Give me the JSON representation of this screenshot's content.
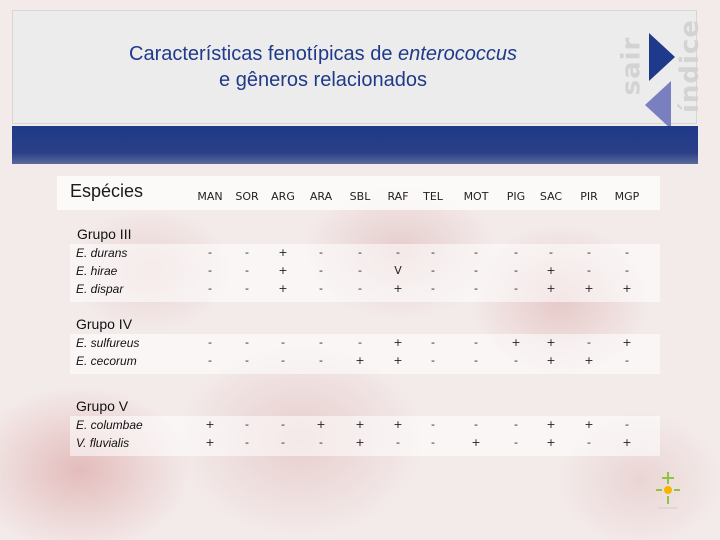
{
  "title": {
    "line1_prefix": "Características fenotípicas de ",
    "line1_italic": "enterococcus",
    "line2": "e gêneros relacionados"
  },
  "nav": {
    "sair": "sair",
    "indice": "índice"
  },
  "table": {
    "first_header": "Espécies",
    "columns": [
      "MAN",
      "SOR",
      "ARG",
      "ARA",
      "SBL",
      "RAF",
      "TEL",
      "MOT",
      "PIG",
      "SAC",
      "PIR",
      "MGP"
    ],
    "groups": [
      {
        "name": "Grupo III",
        "rows": [
          {
            "species": "E. durans",
            "values": [
              "-",
              "-",
              "+",
              "-",
              "-",
              "-",
              "-",
              "-",
              "-",
              "-",
              "-",
              "-"
            ]
          },
          {
            "species": "E. hirae",
            "values": [
              "-",
              "-",
              "+",
              "-",
              "-",
              "V",
              "-",
              "-",
              "-",
              "+",
              "-",
              "-"
            ]
          },
          {
            "species": "E. dispar",
            "values": [
              "-",
              "-",
              "+",
              "-",
              "-",
              "+",
              "-",
              "-",
              "-",
              "+",
              "+",
              "+"
            ]
          }
        ]
      },
      {
        "name": "Grupo IV",
        "rows": [
          {
            "species": "E. sulfureus",
            "values": [
              "-",
              "-",
              "-",
              "-",
              "-",
              "+",
              "-",
              "-",
              "+",
              "+",
              "-",
              "+"
            ]
          },
          {
            "species": "E. cecorum",
            "values": [
              "-",
              "-",
              "-",
              "-",
              "+",
              "+",
              "-",
              "-",
              "-",
              "+",
              "+",
              "-"
            ]
          }
        ]
      },
      {
        "name": "Grupo V",
        "rows": [
          {
            "species": "E. columbae",
            "values": [
              "+",
              "-",
              "-",
              "+",
              "+",
              "+",
              "-",
              "-",
              "-",
              "+",
              "+",
              "-"
            ]
          },
          {
            "species": "V. fluvialis",
            "values": [
              "+",
              "-",
              "-",
              "-",
              "+",
              "-",
              "-",
              "+",
              "-",
              "+",
              "-",
              "+"
            ]
          }
        ]
      }
    ]
  },
  "colors": {
    "title": "#1f3a8a",
    "bar": "#1f3a8a",
    "nav_text": "#d3d3d3",
    "nav_arrow": "#1f3a8a",
    "nav_arrow_back": "#7a7fc0"
  }
}
